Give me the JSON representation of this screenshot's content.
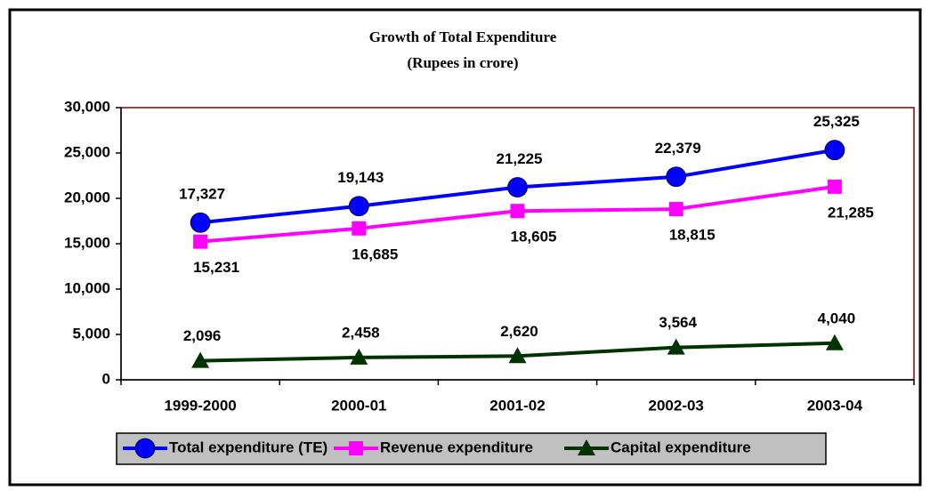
{
  "chart_data": {
    "type": "line",
    "title": "Growth of Total Expenditure",
    "subtitle": "(Rupees in crore)",
    "categories": [
      "1999-2000",
      "2000-01",
      "2001-02",
      "2002-03",
      "2003-04"
    ],
    "series": [
      {
        "name": "Total expenditure (TE)",
        "color": "#0000ff",
        "marker": "circle",
        "values": [
          17327,
          19143,
          21225,
          22379,
          25325
        ],
        "value_labels": [
          "17,327",
          "19,143",
          "21,225",
          "22,379",
          "25,325"
        ]
      },
      {
        "name": "Revenue expenditure",
        "color": "#ff00ff",
        "marker": "square",
        "values": [
          15231,
          16685,
          18605,
          18815,
          21285
        ],
        "value_labels": [
          "15,231",
          "16,685",
          "18,605",
          "18,815",
          "21,285"
        ]
      },
      {
        "name": "Capital expenditure",
        "color": "#003300",
        "marker": "triangle",
        "values": [
          2096,
          2458,
          2620,
          3564,
          4040
        ],
        "value_labels": [
          "2,096",
          "2,458",
          "2,620",
          "3,564",
          "4,040"
        ]
      }
    ],
    "ylim": [
      0,
      30000
    ],
    "yticks": [
      0,
      {
        "value": 5000,
        "label": "5,000"
      },
      {
        "value": 10000,
        "label": "10,000"
      },
      {
        "value": 15000,
        "label": "15,000"
      },
      {
        "value": 20000,
        "label": "20,000"
      },
      {
        "value": 25000,
        "label": "25,000"
      },
      {
        "value": 30000,
        "label": "30,000"
      }
    ],
    "legend": "bottom"
  }
}
